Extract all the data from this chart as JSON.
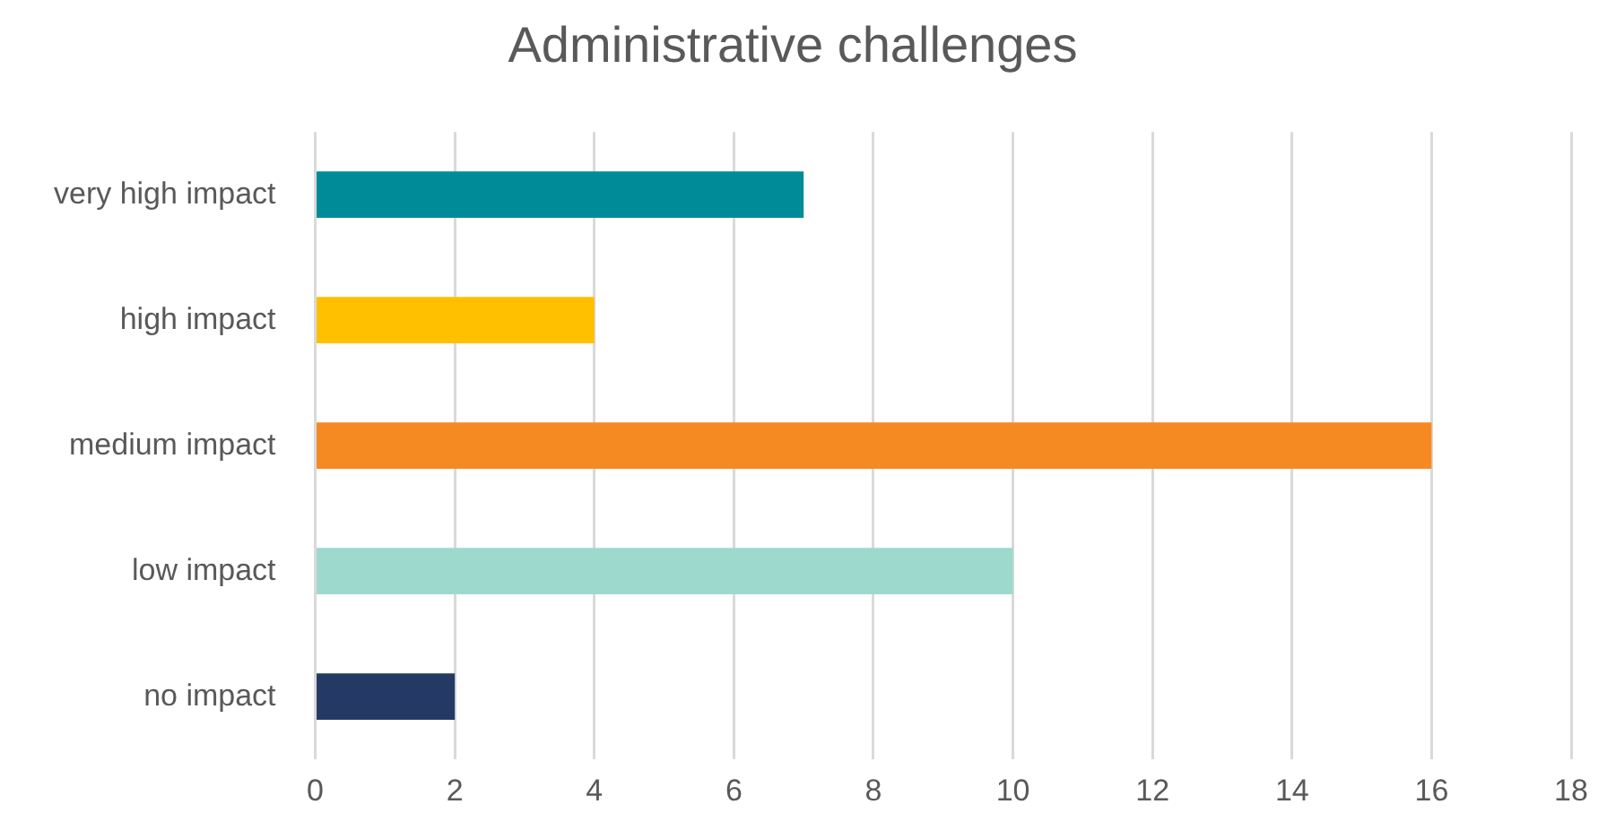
{
  "chart_data": {
    "type": "bar",
    "orientation": "horizontal",
    "title": "Administrative challenges",
    "categories": [
      "very high impact",
      "high impact",
      "medium impact",
      "low impact",
      "no impact"
    ],
    "values": [
      7,
      4,
      16,
      10,
      2
    ],
    "colors": [
      "#008b99",
      "#ffc000",
      "#f58a22",
      "#9dd9cd",
      "#243a64"
    ],
    "xlim": [
      0,
      18
    ],
    "xticks": [
      0,
      2,
      4,
      6,
      8,
      10,
      12,
      14,
      16,
      18
    ],
    "grid": "x",
    "legend": false
  }
}
